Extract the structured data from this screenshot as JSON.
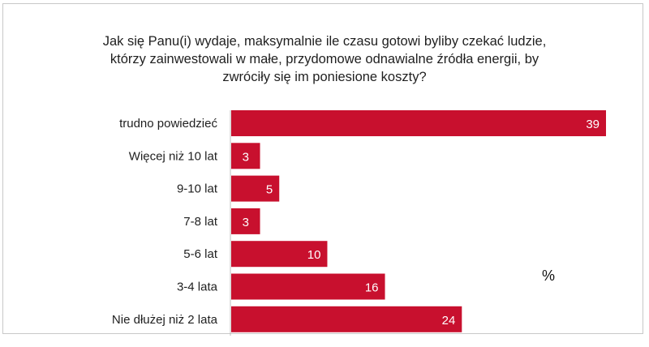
{
  "chart_data": {
    "type": "bar",
    "orientation": "horizontal",
    "title_lines": [
      "Jak się Panu(i) wydaje, maksymalnie ile czasu gotowi byliby czekać ludzie,",
      "którzy zainwestowali w małe, przydomowe odnawialne źródła energii, by",
      "zwróciły się im poniesione koszty?"
    ],
    "unit_label": "%",
    "categories": [
      "trudno powiedzieć",
      "Więcej niż 10 lat",
      "9-10 lat",
      "7-8 lat",
      "5-6 lat",
      "3-4 lata",
      "Nie dłużej niż 2 lata"
    ],
    "values": [
      39,
      3,
      5,
      3,
      10,
      16,
      24
    ],
    "xlim": [
      0,
      39
    ],
    "bar_color": "#c8102e",
    "label_color": "#ffffff",
    "grid": false,
    "legend": "none"
  }
}
